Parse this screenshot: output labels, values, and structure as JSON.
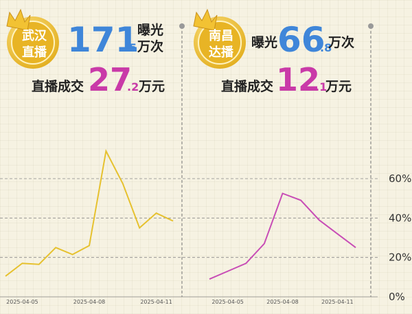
{
  "headers": [
    {
      "badge": [
        "武汉",
        "直播"
      ],
      "exposure_label": [
        "曝光",
        "万次"
      ],
      "exposure_int": "171",
      "exposure_dec": ".5",
      "deal_label": "直播成交",
      "deal_int": "27",
      "deal_dec": ".2",
      "deal_unit": "万元"
    },
    {
      "badge": [
        "南昌",
        "达播"
      ],
      "exposure_label": [
        "曝光",
        "万次"
      ],
      "exposure_int": "66",
      "exposure_dec": ".8",
      "deal_label": "直播成交",
      "deal_int": "12",
      "deal_dec": ".1",
      "deal_unit": "万元"
    }
  ],
  "chart_data": [
    {
      "type": "line",
      "color": "#e6c12e",
      "categories": [
        null,
        "2025-04-05",
        null,
        null,
        null,
        "2025-04-08",
        null,
        null,
        null,
        "2025-04-11",
        null
      ],
      "values": [
        10.5,
        17,
        16.5,
        25,
        21.5,
        26,
        74,
        57.5,
        35,
        42.5,
        38.5
      ],
      "ylim": [
        0,
        60
      ]
    },
    {
      "type": "line",
      "color": "#c84db6",
      "categories": [
        null,
        "2025-04-05",
        null,
        null,
        "2025-04-08",
        null,
        null,
        "2025-04-11",
        null
      ],
      "values": [
        9,
        13,
        17,
        27,
        52.5,
        49,
        39,
        32,
        25
      ],
      "ylim": [
        0,
        60
      ],
      "yticks": [
        {
          "value": 0,
          "label": "0%"
        },
        {
          "value": 20,
          "label": "20%"
        },
        {
          "value": 40,
          "label": "40%"
        },
        {
          "value": 60,
          "label": "60%"
        }
      ],
      "grid": true
    }
  ]
}
